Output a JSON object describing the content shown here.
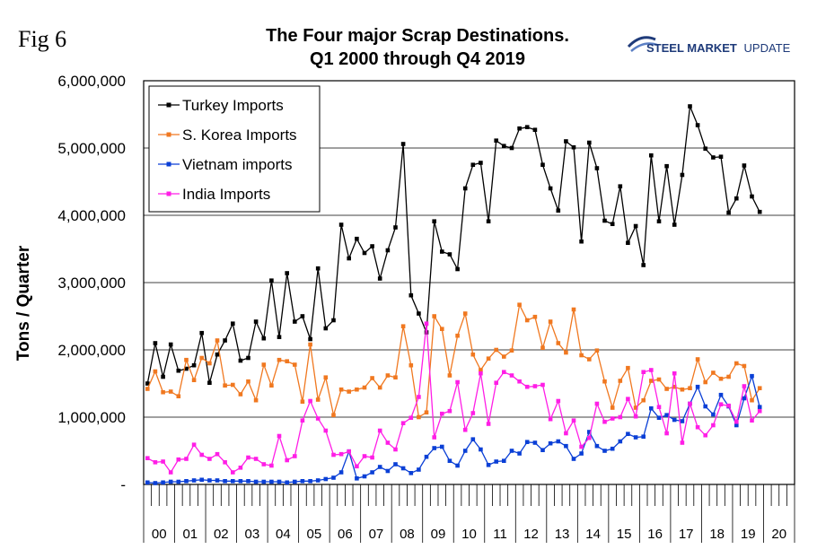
{
  "figure_label": "Fig 6",
  "brand": {
    "bold": "STEEL MARKET",
    "light": "UPDATE",
    "color": "#1f3b7a",
    "accent": "#5b7fc4"
  },
  "chart_data": {
    "type": "line",
    "title": [
      "The Four major Scrap Destinations.",
      "Q1 2000 through Q4 2019"
    ],
    "ylabel": "Tons / Quarter",
    "ylim": [
      0,
      6000000
    ],
    "ytick_labels": [
      "-",
      "1,000,000",
      "2,000,000",
      "3,000,000",
      "4,000,000",
      "5,000,000",
      "6,000,000"
    ],
    "ytick_values": [
      0,
      1000000,
      2000000,
      3000000,
      4000000,
      5000000,
      6000000
    ],
    "quarters_per_year": 4,
    "year_labels": [
      "00",
      "01",
      "02",
      "03",
      "04",
      "05",
      "06",
      "07",
      "08",
      "09",
      "10",
      "11",
      "12",
      "13",
      "14",
      "15",
      "16",
      "17",
      "18",
      "19",
      "20"
    ],
    "grid": {
      "horizontal": true,
      "vertical": false
    },
    "legend_position": "top-left",
    "series": [
      {
        "name": "Turkey Imports",
        "color": "#000000",
        "values": [
          1500000,
          2100000,
          1600000,
          2080000,
          1690000,
          1720000,
          1770000,
          2250000,
          1510000,
          1930000,
          2140000,
          2390000,
          1840000,
          1880000,
          2420000,
          2170000,
          3030000,
          2190000,
          3140000,
          2420000,
          2500000,
          2160000,
          3210000,
          2320000,
          2440000,
          3860000,
          3360000,
          3650000,
          3440000,
          3540000,
          3060000,
          3480000,
          3820000,
          5060000,
          2810000,
          2540000,
          2260000,
          3910000,
          3460000,
          3420000,
          3200000,
          4400000,
          4750000,
          4780000,
          3910000,
          5110000,
          5030000,
          5000000,
          5290000,
          5310000,
          5270000,
          4750000,
          4400000,
          4070000,
          5100000,
          5010000,
          3610000,
          5080000,
          4700000,
          3920000,
          3870000,
          4430000,
          3590000,
          3840000,
          3260000,
          4890000,
          3910000,
          4730000,
          3860000,
          4600000,
          5620000,
          5340000,
          4990000,
          4860000,
          4870000,
          4040000,
          4250000,
          4740000,
          4280000,
          4050000
        ]
      },
      {
        "name": "S. Korea Imports",
        "color": "#f07820",
        "values": [
          1420000,
          1680000,
          1370000,
          1380000,
          1310000,
          1850000,
          1550000,
          1880000,
          1800000,
          2140000,
          1470000,
          1480000,
          1340000,
          1530000,
          1250000,
          1780000,
          1470000,
          1850000,
          1830000,
          1780000,
          1230000,
          2080000,
          1260000,
          1590000,
          1030000,
          1410000,
          1380000,
          1410000,
          1440000,
          1580000,
          1440000,
          1620000,
          1590000,
          2350000,
          1770000,
          1000000,
          1070000,
          2500000,
          2310000,
          1620000,
          2210000,
          2540000,
          1930000,
          1700000,
          1870000,
          2000000,
          1900000,
          1990000,
          2670000,
          2440000,
          2490000,
          2030000,
          2420000,
          2100000,
          1960000,
          2600000,
          1920000,
          1860000,
          1990000,
          1530000,
          1140000,
          1540000,
          1730000,
          1140000,
          1250000,
          1540000,
          1560000,
          1420000,
          1450000,
          1410000,
          1430000,
          1860000,
          1520000,
          1660000,
          1570000,
          1600000,
          1800000,
          1760000,
          1250000,
          1430000
        ]
      },
      {
        "name": "Vietnam imports",
        "color": "#0a3fd6",
        "values": [
          30000,
          20000,
          30000,
          40000,
          40000,
          50000,
          60000,
          70000,
          60000,
          60000,
          50000,
          50000,
          50000,
          50000,
          40000,
          40000,
          40000,
          40000,
          30000,
          40000,
          50000,
          50000,
          60000,
          80000,
          100000,
          180000,
          490000,
          90000,
          120000,
          180000,
          260000,
          200000,
          300000,
          240000,
          170000,
          220000,
          410000,
          540000,
          560000,
          350000,
          280000,
          500000,
          670000,
          520000,
          290000,
          340000,
          350000,
          500000,
          460000,
          630000,
          620000,
          510000,
          610000,
          640000,
          570000,
          380000,
          460000,
          780000,
          570000,
          500000,
          530000,
          640000,
          750000,
          700000,
          710000,
          1130000,
          990000,
          1030000,
          960000,
          940000,
          1200000,
          1450000,
          1160000,
          1040000,
          1330000,
          1160000,
          880000,
          1280000,
          1610000,
          1150000
        ]
      },
      {
        "name": "India Imports",
        "color": "#ff1ee6",
        "values": [
          390000,
          330000,
          340000,
          180000,
          370000,
          380000,
          590000,
          440000,
          380000,
          450000,
          330000,
          180000,
          250000,
          400000,
          380000,
          300000,
          280000,
          720000,
          360000,
          420000,
          950000,
          1240000,
          980000,
          800000,
          440000,
          450000,
          490000,
          270000,
          420000,
          400000,
          800000,
          620000,
          520000,
          910000,
          990000,
          1300000,
          2390000,
          700000,
          1050000,
          1090000,
          1520000,
          810000,
          1060000,
          1650000,
          900000,
          1510000,
          1670000,
          1620000,
          1530000,
          1450000,
          1460000,
          1480000,
          970000,
          1240000,
          760000,
          950000,
          560000,
          690000,
          1200000,
          930000,
          980000,
          1000000,
          1270000,
          1010000,
          1670000,
          1700000,
          1150000,
          760000,
          1650000,
          620000,
          1200000,
          850000,
          730000,
          880000,
          1190000,
          1170000,
          930000,
          1460000,
          950000,
          1090000
        ]
      }
    ]
  }
}
